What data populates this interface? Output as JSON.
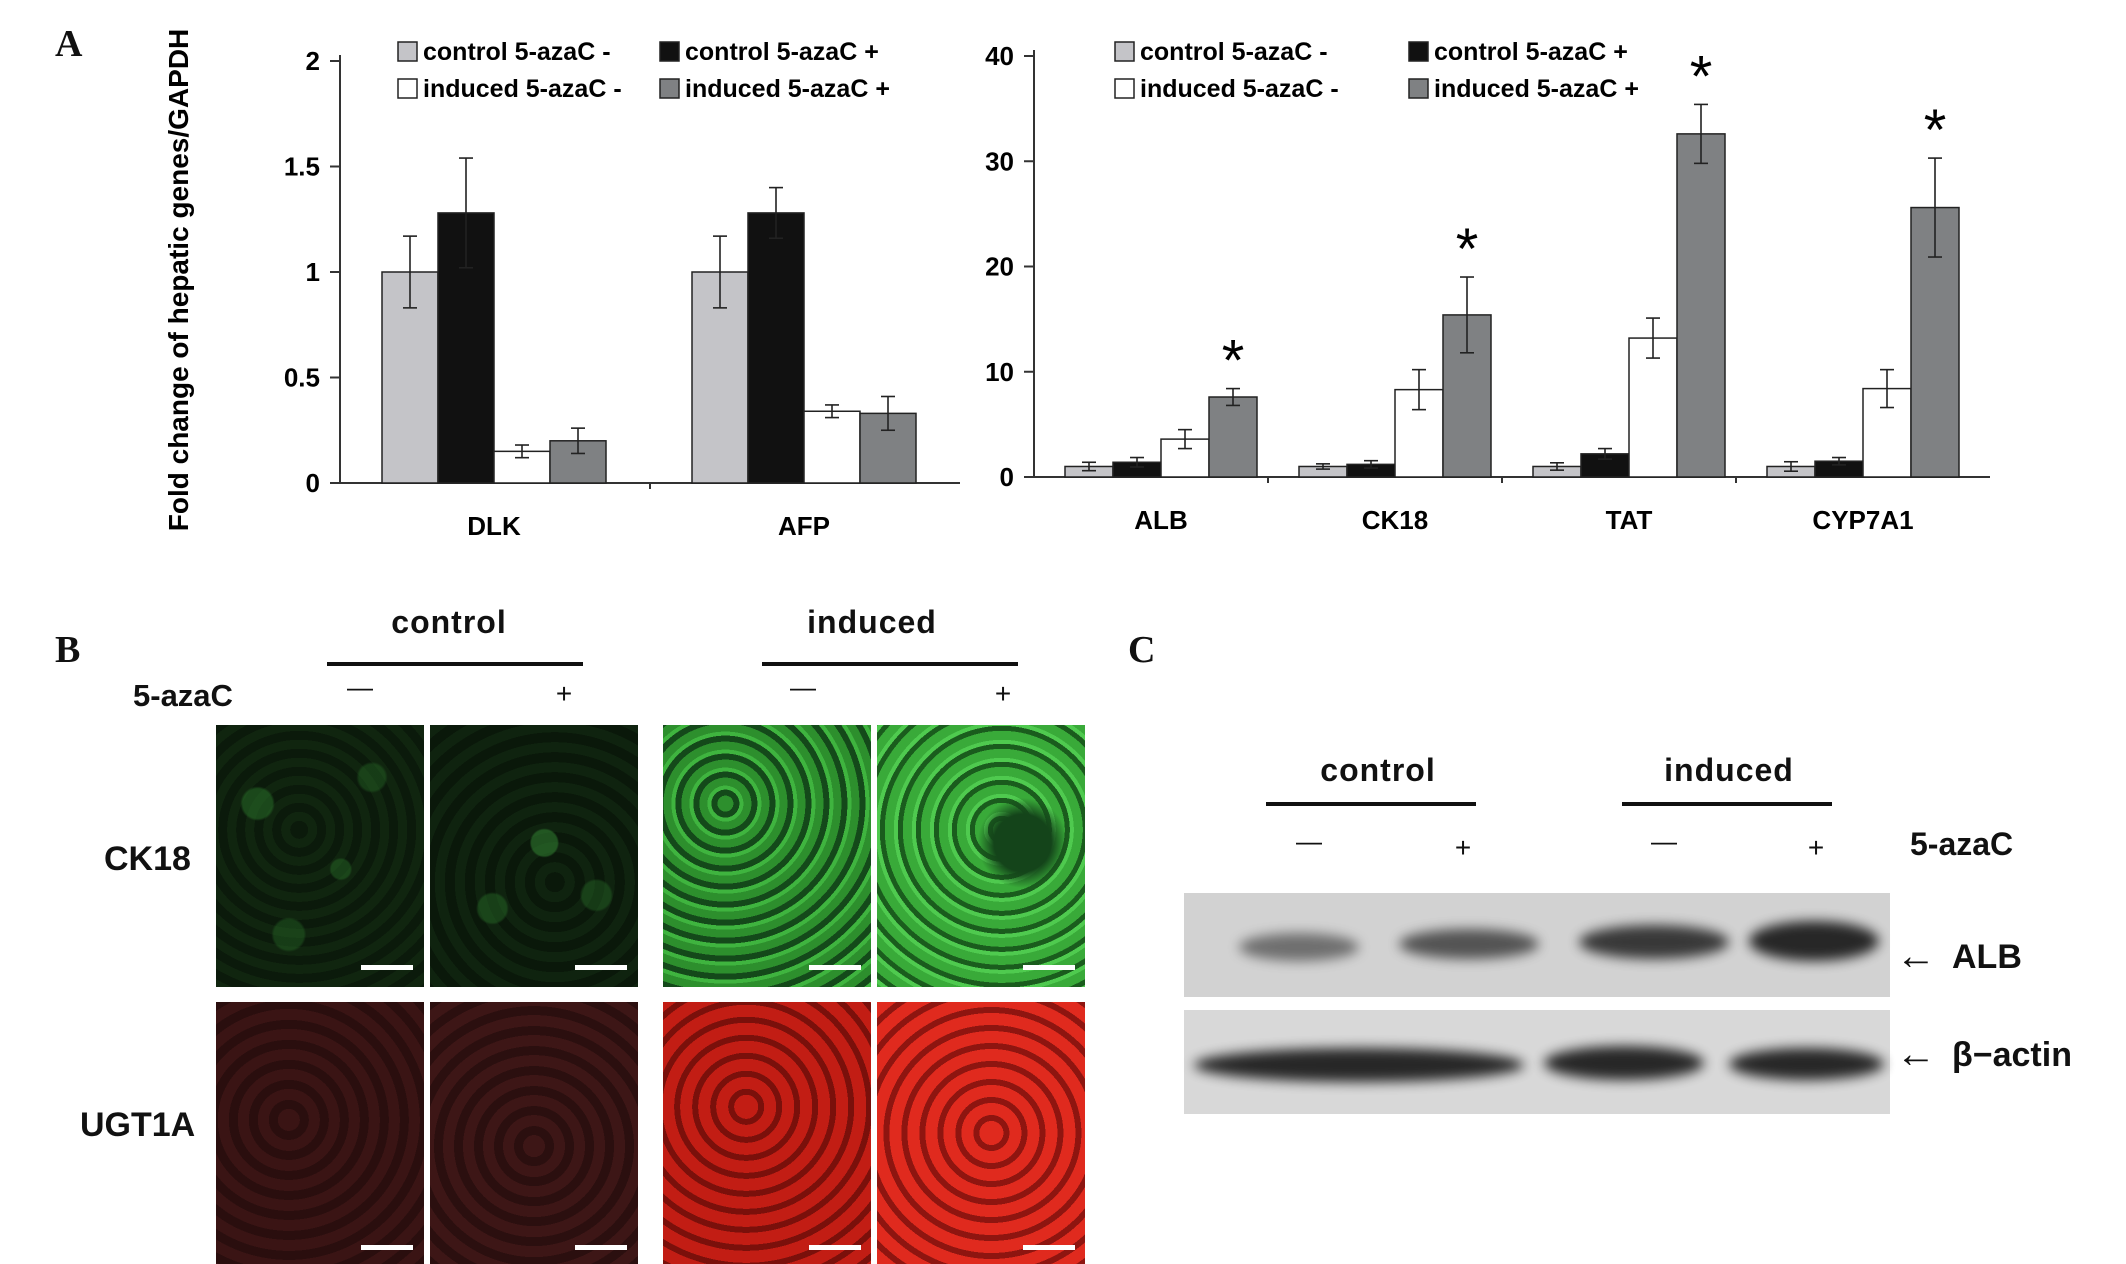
{
  "panel_labels": {
    "a": "A",
    "b": "B",
    "c": "C"
  },
  "colors": {
    "control_minus": "#c4c4c8",
    "control_plus": "#111111",
    "induced_minus": "#ffffff",
    "induced_plus": "#7f8183",
    "green_stain": "#2fb02f",
    "red_stain": "#d8221a"
  },
  "chart_data": [
    {
      "type": "bar",
      "ylabel": "Fold change of hepatic genes/GAPDH",
      "ylim": [
        0,
        2
      ],
      "yticks": [
        "0",
        "0.5",
        "1",
        "1.5",
        "2"
      ],
      "categories": [
        "DLK",
        "AFP"
      ],
      "legend": {
        "placement": "top",
        "entries": [
          "control 5-azaC -",
          "control 5-azaC +",
          "induced 5-azaC -",
          "induced 5-azaC +"
        ]
      },
      "series": [
        {
          "name": "control 5-azaC -",
          "values": [
            1.0,
            1.0
          ],
          "errors": [
            0.17,
            0.17
          ]
        },
        {
          "name": "control 5-azaC +",
          "values": [
            1.28,
            1.28
          ],
          "errors": [
            0.26,
            0.12
          ]
        },
        {
          "name": "induced 5-azaC -",
          "values": [
            0.15,
            0.34
          ],
          "errors": [
            0.03,
            0.03
          ]
        },
        {
          "name": "induced 5-azaC +",
          "values": [
            0.2,
            0.33
          ],
          "errors": [
            0.06,
            0.08
          ]
        }
      ],
      "significance": []
    },
    {
      "type": "bar",
      "ylabel": "",
      "ylim": [
        0,
        40
      ],
      "yticks": [
        "0",
        "10",
        "20",
        "30",
        "40"
      ],
      "categories": [
        "ALB",
        "CK18",
        "TAT",
        "CYP7A1"
      ],
      "legend": {
        "placement": "top",
        "entries": [
          "control 5-azaC -",
          "control 5-azaC +",
          "induced 5-azaC -",
          "induced 5-azaC +"
        ]
      },
      "series": [
        {
          "name": "control 5-azaC -",
          "values": [
            1.0,
            1.0,
            1.0,
            1.0
          ],
          "errors": [
            0.4,
            0.25,
            0.35,
            0.45
          ]
        },
        {
          "name": "control 5-azaC +",
          "values": [
            1.4,
            1.2,
            2.2,
            1.5
          ],
          "errors": [
            0.45,
            0.35,
            0.5,
            0.35
          ]
        },
        {
          "name": "induced 5-azaC -",
          "values": [
            3.6,
            8.3,
            13.2,
            8.4
          ],
          "errors": [
            0.9,
            1.9,
            1.9,
            1.8
          ]
        },
        {
          "name": "induced 5-azaC +",
          "values": [
            7.6,
            15.4,
            32.6,
            25.6
          ],
          "errors": [
            0.8,
            3.6,
            2.8,
            4.7
          ]
        }
      ],
      "significance": [
        "*",
        "*",
        "*",
        "*"
      ]
    }
  ],
  "panel_b": {
    "group_control": "control",
    "group_induced": "induced",
    "treatment_label": "5-azaC",
    "minus": "—",
    "plus": "+",
    "row_ck18": "CK18",
    "row_ugt1a": "UGT1A"
  },
  "panel_c": {
    "group_control": "control",
    "group_induced": "induced",
    "treatment_label": "5-azaC",
    "minus": "—",
    "plus": "+",
    "band_alb": "ALB",
    "band_actin": "β−actin",
    "arrow": "←"
  }
}
